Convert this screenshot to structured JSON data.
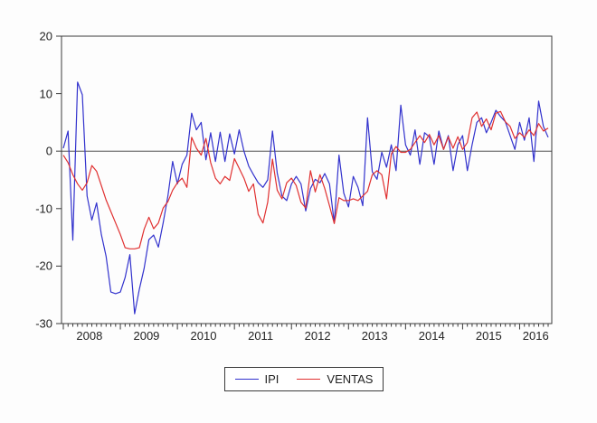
{
  "figure": {
    "background": "#fdfdfd",
    "plot_background": "#fdfdfd",
    "frame_color": "#3a3a3a",
    "zero_line_color": "#4d4d4d",
    "label_color": "#222222"
  },
  "chart_data": {
    "type": "line",
    "title": "",
    "xlabel": "",
    "ylabel": "",
    "frequency": "monthly",
    "x_start": "2008M01",
    "x_end": "2016M07",
    "ylim": [
      -30,
      20
    ],
    "y_ticks": [
      20,
      10,
      0,
      -10,
      -20,
      -30
    ],
    "x_year_labels": [
      "2008",
      "2009",
      "2010",
      "2011",
      "2012",
      "2013",
      "2014",
      "2015",
      "2016"
    ],
    "grid": false,
    "zero_line": true,
    "legend_position": "bottom-center",
    "series": [
      {
        "name": "IPI",
        "color": "#3232cd",
        "values": [
          0.5,
          3.5,
          -15.5,
          12.0,
          9.8,
          -7.8,
          -12.0,
          -9.0,
          -14.5,
          -18.3,
          -24.5,
          -24.8,
          -24.5,
          -22.0,
          -18.0,
          -28.3,
          -24.0,
          -20.4,
          -15.4,
          -14.6,
          -16.7,
          -12.5,
          -7.8,
          -1.8,
          -5.7,
          -2.3,
          -0.7,
          6.6,
          3.7,
          5.0,
          -1.5,
          3.2,
          -1.8,
          3.3,
          -1.8,
          3.0,
          -0.5,
          3.7,
          0.0,
          -2.6,
          -4.1,
          -5.5,
          -6.3,
          -5.0,
          3.5,
          -3.8,
          -7.8,
          -8.6,
          -5.7,
          -4.4,
          -5.7,
          -10.4,
          -6.5,
          -4.9,
          -5.5,
          -3.9,
          -5.7,
          -12.5,
          -0.7,
          -7.3,
          -9.7,
          -4.4,
          -6.3,
          -9.5,
          5.8,
          -3.6,
          -4.9,
          -0.2,
          -2.8,
          1.1,
          -3.4,
          8.0,
          1.1,
          -0.7,
          3.7,
          -2.3,
          3.2,
          2.5,
          -2.3,
          3.5,
          0.3,
          2.7,
          -3.4,
          1.1,
          2.7,
          -3.4,
          1.1,
          5.0,
          5.8,
          3.2,
          5.0,
          7.1,
          6.0,
          5.1,
          2.7,
          0.3,
          5.0,
          1.9,
          5.8,
          -1.8,
          8.7,
          4.3,
          2.4
        ]
      },
      {
        "name": "VENTAS",
        "color": "#e03030",
        "values": [
          -0.7,
          -2.0,
          -4.1,
          -5.7,
          -6.8,
          -5.5,
          -2.5,
          -3.5,
          -6.0,
          -8.5,
          -10.5,
          -12.5,
          -14.5,
          -16.8,
          -17.0,
          -17.0,
          -16.8,
          -13.6,
          -11.5,
          -13.5,
          -12.5,
          -9.9,
          -8.8,
          -6.8,
          -5.5,
          -4.7,
          -6.3,
          2.4,
          0.5,
          -0.7,
          2.2,
          -2.0,
          -4.7,
          -5.7,
          -4.4,
          -5.1,
          -1.3,
          -3.0,
          -4.7,
          -7.0,
          -5.7,
          -11.0,
          -12.5,
          -8.9,
          -1.4,
          -6.8,
          -8.3,
          -5.5,
          -4.7,
          -6.0,
          -8.9,
          -9.9,
          -3.4,
          -7.1,
          -4.1,
          -6.5,
          -9.5,
          -12.6,
          -8.1,
          -8.6,
          -8.6,
          -8.3,
          -8.6,
          -7.8,
          -7.0,
          -4.1,
          -3.4,
          -4.1,
          -8.3,
          -0.5,
          0.8,
          -0.2,
          -0.2,
          0.3,
          1.5,
          2.7,
          1.5,
          2.9,
          1.1,
          2.7,
          0.3,
          2.5,
          0.5,
          2.5,
          0.3,
          1.5,
          5.8,
          6.8,
          4.3,
          5.6,
          3.7,
          6.6,
          6.9,
          5.1,
          4.3,
          2.2,
          3.2,
          2.4,
          3.7,
          2.7,
          4.8,
          3.5,
          4.0
        ]
      }
    ]
  },
  "legend": {
    "items": [
      {
        "label": "IPI"
      },
      {
        "label": "VENTAS"
      }
    ]
  }
}
